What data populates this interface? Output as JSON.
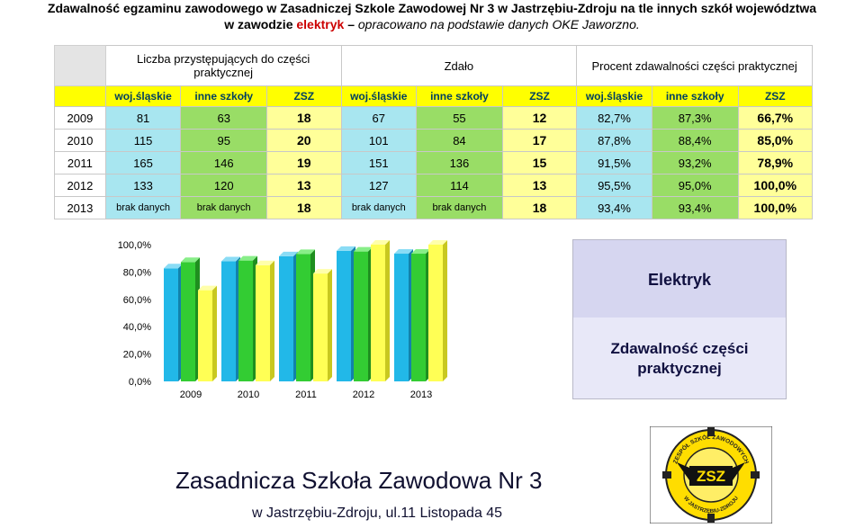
{
  "title": {
    "line1": "Zdawalność egzaminu zawodowego w Zasadniczej Szkole Zawodowej Nr 3 w Jastrzębiu-Zdroju na tle innych szkół województwa",
    "line2_prefix": "w zawodzie ",
    "line2_highlight": "elektryk",
    "line2_suffix": " – ",
    "line2_italic": "opracowano na podstawie danych OKE Jaworzno."
  },
  "table": {
    "groups": [
      "Liczba przystępujących do części praktycznej",
      "Zdało",
      "Procent zdawalności części praktycznej"
    ],
    "subheaders": [
      "woj.śląskie",
      "inne szkoły",
      "ZSZ",
      "woj.śląskie",
      "inne szkoły",
      "ZSZ",
      "woj.śląskie",
      "inne szkoły",
      "ZSZ"
    ],
    "rows": [
      {
        "year": "2009",
        "cells": [
          "81",
          "63",
          "18",
          "67",
          "55",
          "12",
          "82,7%",
          "87,3%",
          "66,7%"
        ]
      },
      {
        "year": "2010",
        "cells": [
          "115",
          "95",
          "20",
          "101",
          "84",
          "17",
          "87,8%",
          "88,4%",
          "85,0%"
        ]
      },
      {
        "year": "2011",
        "cells": [
          "165",
          "146",
          "19",
          "151",
          "136",
          "15",
          "91,5%",
          "93,2%",
          "78,9%"
        ]
      },
      {
        "year": "2012",
        "cells": [
          "133",
          "120",
          "13",
          "127",
          "114",
          "13",
          "95,5%",
          "95,0%",
          "100,0%"
        ]
      },
      {
        "year": "2013",
        "cells": [
          "brak danych",
          "brak danych",
          "18",
          "brak danych",
          "brak danych",
          "18",
          "93,4%",
          "93,4%",
          "100,0%"
        ]
      }
    ]
  },
  "chart_data": {
    "type": "bar",
    "categories": [
      "2009",
      "2010",
      "2011",
      "2012",
      "2013"
    ],
    "series": [
      {
        "name": "woj.śląskie",
        "values": [
          82.7,
          87.8,
          91.5,
          95.5,
          93.4
        ],
        "color": "#22b8e8"
      },
      {
        "name": "inne szkoły",
        "values": [
          87.3,
          88.4,
          93.2,
          95.0,
          93.4
        ],
        "color": "#33cc33"
      },
      {
        "name": "ZSZ",
        "values": [
          66.7,
          85.0,
          78.9,
          100.0,
          100.0
        ],
        "color": "#ffff55"
      }
    ],
    "yticks": [
      "0,0%",
      "20,0%",
      "40,0%",
      "60,0%",
      "80,0%",
      "100,0%"
    ],
    "ylim": [
      0,
      100
    ]
  },
  "info": {
    "label1": "Elektryk",
    "label2": "Zdawalność części praktycznej"
  },
  "footer": {
    "school": "Zasadnicza Szkoła Zawodowa Nr 3",
    "address": "w Jastrzębiu-Zdroju, ul.11 Listopada 45"
  },
  "logo": {
    "ring_text": "ZESPÓŁ SZKÓŁ ZAWODOWYCH",
    "bottom_text": "W JASTRZĘBIU-ZDROJU",
    "center_text": "ZSZ"
  }
}
